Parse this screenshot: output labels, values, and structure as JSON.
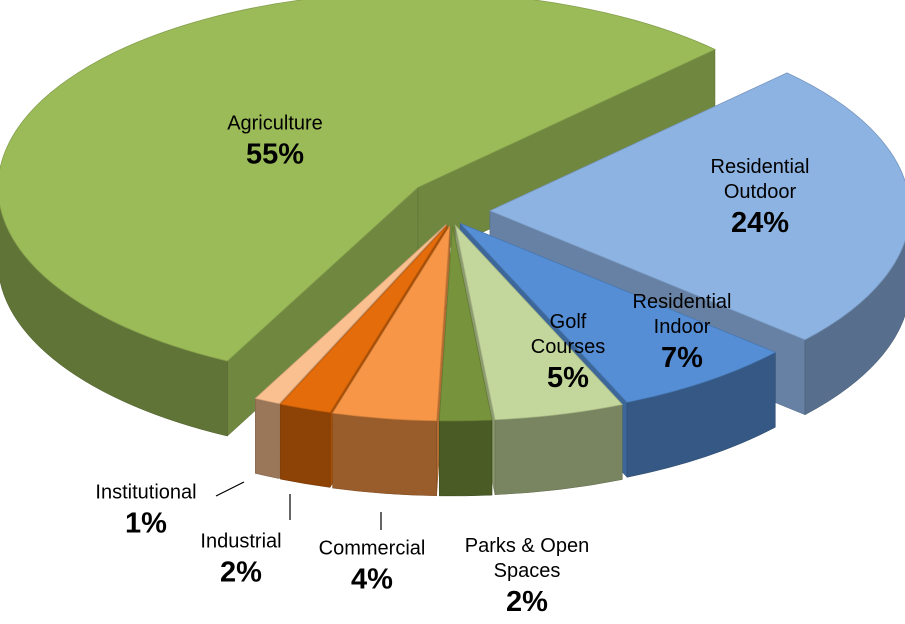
{
  "chart_data": {
    "type": "pie3d",
    "categories": [
      "Residential Outdoor",
      "Residential Indoor",
      "Golf Courses",
      "Parks & Open Spaces",
      "Commercial",
      "Industrial",
      "Institutional",
      "Agriculture"
    ],
    "values": [
      24,
      7,
      5,
      2,
      4,
      2,
      1,
      55
    ],
    "value_labels": [
      "24%",
      "7%",
      "5%",
      "2%",
      "4%",
      "2%",
      "1%",
      "55%"
    ],
    "colors": [
      "#8db3e2",
      "#558ed5",
      "#c3d69b",
      "#77933c",
      "#f79646",
      "#e46c0a",
      "#fac090",
      "#9bbb59"
    ]
  }
}
